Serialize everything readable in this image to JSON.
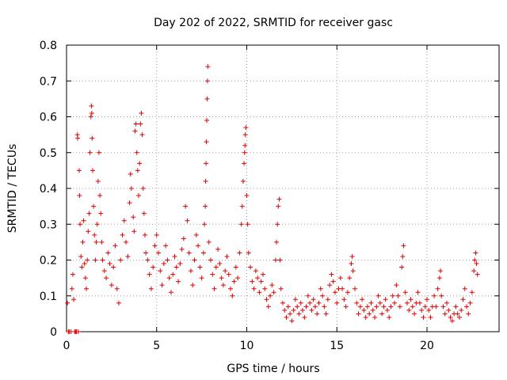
{
  "chart_data": {
    "type": "scatter",
    "title": "Day 202 of 2022, SRMTID for receiver gasc",
    "xlabel": "GPS time / hours",
    "ylabel": "SRMTID / TECUs",
    "xlim": [
      0,
      24
    ],
    "ylim": [
      0,
      0.8
    ],
    "xticks": [
      0,
      5,
      10,
      15,
      20
    ],
    "xtick_labels": [
      "0",
      "5",
      "10",
      "15",
      "20"
    ],
    "yticks": [
      0,
      0.1,
      0.2,
      0.3,
      0.4,
      0.5,
      0.6,
      0.7,
      0.8
    ],
    "ytick_labels": [
      "0",
      "0.1",
      "0.2",
      "0.3",
      "0.4",
      "0.5",
      "0.6",
      "0.7",
      "0.8"
    ],
    "grid": true,
    "marker": "+",
    "color": "#e00000",
    "series": [
      {
        "name": "SRMTID",
        "points": [
          [
            0.05,
            0.08
          ],
          [
            0.1,
            0.0
          ],
          [
            0.15,
            0.0
          ],
          [
            0.25,
            0.0
          ],
          [
            0.3,
            0.12
          ],
          [
            0.35,
            0.16
          ],
          [
            0.4,
            0.09
          ],
          [
            0.45,
            0.0
          ],
          [
            0.5,
            0.0
          ],
          [
            0.55,
            0.0
          ],
          [
            0.6,
            0.55
          ],
          [
            0.62,
            0.54
          ],
          [
            0.65,
            0.0
          ],
          [
            0.7,
            0.45
          ],
          [
            0.72,
            0.38
          ],
          [
            0.75,
            0.3
          ],
          [
            0.8,
            0.21
          ],
          [
            0.85,
            0.18
          ],
          [
            0.9,
            0.25
          ],
          [
            0.95,
            0.31
          ],
          [
            1.0,
            0.19
          ],
          [
            1.05,
            0.15
          ],
          [
            1.1,
            0.12
          ],
          [
            1.15,
            0.2
          ],
          [
            1.2,
            0.28
          ],
          [
            1.25,
            0.33
          ],
          [
            1.3,
            0.5
          ],
          [
            1.35,
            0.6
          ],
          [
            1.38,
            0.63
          ],
          [
            1.4,
            0.61
          ],
          [
            1.42,
            0.54
          ],
          [
            1.45,
            0.45
          ],
          [
            1.5,
            0.35
          ],
          [
            1.55,
            0.27
          ],
          [
            1.6,
            0.2
          ],
          [
            1.65,
            0.25
          ],
          [
            1.7,
            0.3
          ],
          [
            1.75,
            0.42
          ],
          [
            1.8,
            0.5
          ],
          [
            1.85,
            0.38
          ],
          [
            1.9,
            0.33
          ],
          [
            1.95,
            0.25
          ],
          [
            2.0,
            0.2
          ],
          [
            2.1,
            0.17
          ],
          [
            2.2,
            0.15
          ],
          [
            2.3,
            0.22
          ],
          [
            2.4,
            0.19
          ],
          [
            2.5,
            0.13
          ],
          [
            2.6,
            0.18
          ],
          [
            2.7,
            0.24
          ],
          [
            2.8,
            0.12
          ],
          [
            2.9,
            0.08
          ],
          [
            3.0,
            0.2
          ],
          [
            3.1,
            0.27
          ],
          [
            3.2,
            0.31
          ],
          [
            3.3,
            0.25
          ],
          [
            3.4,
            0.21
          ],
          [
            3.5,
            0.36
          ],
          [
            3.55,
            0.44
          ],
          [
            3.6,
            0.4
          ],
          [
            3.7,
            0.32
          ],
          [
            3.75,
            0.28
          ],
          [
            3.8,
            0.56
          ],
          [
            3.85,
            0.58
          ],
          [
            3.9,
            0.5
          ],
          [
            3.95,
            0.45
          ],
          [
            4.0,
            0.38
          ],
          [
            4.05,
            0.47
          ],
          [
            4.1,
            0.58
          ],
          [
            4.15,
            0.61
          ],
          [
            4.2,
            0.55
          ],
          [
            4.25,
            0.4
          ],
          [
            4.3,
            0.33
          ],
          [
            4.35,
            0.27
          ],
          [
            4.4,
            0.22
          ],
          [
            4.5,
            0.2
          ],
          [
            4.6,
            0.16
          ],
          [
            4.7,
            0.12
          ],
          [
            4.8,
            0.18
          ],
          [
            4.9,
            0.24
          ],
          [
            5.0,
            0.27
          ],
          [
            5.1,
            0.22
          ],
          [
            5.2,
            0.17
          ],
          [
            5.3,
            0.13
          ],
          [
            5.4,
            0.19
          ],
          [
            5.5,
            0.24
          ],
          [
            5.6,
            0.2
          ],
          [
            5.7,
            0.15
          ],
          [
            5.8,
            0.11
          ],
          [
            5.9,
            0.16
          ],
          [
            6.0,
            0.21
          ],
          [
            6.1,
            0.18
          ],
          [
            6.2,
            0.14
          ],
          [
            6.3,
            0.19
          ],
          [
            6.4,
            0.23
          ],
          [
            6.5,
            0.26
          ],
          [
            6.6,
            0.35
          ],
          [
            6.7,
            0.31
          ],
          [
            6.8,
            0.22
          ],
          [
            6.9,
            0.17
          ],
          [
            7.0,
            0.13
          ],
          [
            7.1,
            0.2
          ],
          [
            7.2,
            0.27
          ],
          [
            7.3,
            0.24
          ],
          [
            7.4,
            0.18
          ],
          [
            7.5,
            0.15
          ],
          [
            7.6,
            0.22
          ],
          [
            7.65,
            0.3
          ],
          [
            7.7,
            0.35
          ],
          [
            7.72,
            0.42
          ],
          [
            7.74,
            0.47
          ],
          [
            7.76,
            0.53
          ],
          [
            7.78,
            0.59
          ],
          [
            7.8,
            0.65
          ],
          [
            7.82,
            0.7
          ],
          [
            7.84,
            0.74
          ],
          [
            7.9,
            0.25
          ],
          [
            8.0,
            0.2
          ],
          [
            8.1,
            0.16
          ],
          [
            8.2,
            0.12
          ],
          [
            8.3,
            0.18
          ],
          [
            8.4,
            0.23
          ],
          [
            8.5,
            0.19
          ],
          [
            8.6,
            0.15
          ],
          [
            8.7,
            0.13
          ],
          [
            8.8,
            0.17
          ],
          [
            8.9,
            0.21
          ],
          [
            9.0,
            0.16
          ],
          [
            9.1,
            0.12
          ],
          [
            9.2,
            0.1
          ],
          [
            9.3,
            0.14
          ],
          [
            9.4,
            0.18
          ],
          [
            9.5,
            0.15
          ],
          [
            9.6,
            0.22
          ],
          [
            9.7,
            0.3
          ],
          [
            9.75,
            0.35
          ],
          [
            9.8,
            0.42
          ],
          [
            9.85,
            0.47
          ],
          [
            9.88,
            0.5
          ],
          [
            9.9,
            0.52
          ],
          [
            9.92,
            0.55
          ],
          [
            9.95,
            0.57
          ],
          [
            10.0,
            0.38
          ],
          [
            10.05,
            0.3
          ],
          [
            10.1,
            0.22
          ],
          [
            10.2,
            0.18
          ],
          [
            10.3,
            0.14
          ],
          [
            10.4,
            0.12
          ],
          [
            10.5,
            0.17
          ],
          [
            10.6,
            0.15
          ],
          [
            10.7,
            0.11
          ],
          [
            10.8,
            0.14
          ],
          [
            10.9,
            0.16
          ],
          [
            11.0,
            0.12
          ],
          [
            11.1,
            0.09
          ],
          [
            11.2,
            0.07
          ],
          [
            11.3,
            0.1
          ],
          [
            11.4,
            0.13
          ],
          [
            11.5,
            0.11
          ],
          [
            11.6,
            0.2
          ],
          [
            11.65,
            0.25
          ],
          [
            11.7,
            0.3
          ],
          [
            11.75,
            0.35
          ],
          [
            11.8,
            0.37
          ],
          [
            11.85,
            0.2
          ],
          [
            11.9,
            0.12
          ],
          [
            12.0,
            0.08
          ],
          [
            12.1,
            0.06
          ],
          [
            12.2,
            0.04
          ],
          [
            12.3,
            0.07
          ],
          [
            12.4,
            0.05
          ],
          [
            12.5,
            0.03
          ],
          [
            12.6,
            0.06
          ],
          [
            12.7,
            0.09
          ],
          [
            12.8,
            0.07
          ],
          [
            12.9,
            0.05
          ],
          [
            13.0,
            0.08
          ],
          [
            13.1,
            0.06
          ],
          [
            13.2,
            0.04
          ],
          [
            13.3,
            0.07
          ],
          [
            13.4,
            0.1
          ],
          [
            13.5,
            0.08
          ],
          [
            13.6,
            0.06
          ],
          [
            13.7,
            0.09
          ],
          [
            13.8,
            0.07
          ],
          [
            13.9,
            0.05
          ],
          [
            14.0,
            0.08
          ],
          [
            14.1,
            0.12
          ],
          [
            14.2,
            0.1
          ],
          [
            14.3,
            0.07
          ],
          [
            14.4,
            0.05
          ],
          [
            14.5,
            0.09
          ],
          [
            14.6,
            0.13
          ],
          [
            14.7,
            0.16
          ],
          [
            14.8,
            0.14
          ],
          [
            14.9,
            0.11
          ],
          [
            15.0,
            0.08
          ],
          [
            15.1,
            0.12
          ],
          [
            15.2,
            0.15
          ],
          [
            15.3,
            0.12
          ],
          [
            15.4,
            0.09
          ],
          [
            15.5,
            0.07
          ],
          [
            15.6,
            0.11
          ],
          [
            15.7,
            0.15
          ],
          [
            15.8,
            0.19
          ],
          [
            15.85,
            0.21
          ],
          [
            15.9,
            0.17
          ],
          [
            16.0,
            0.12
          ],
          [
            16.1,
            0.08
          ],
          [
            16.2,
            0.05
          ],
          [
            16.3,
            0.07
          ],
          [
            16.4,
            0.09
          ],
          [
            16.5,
            0.06
          ],
          [
            16.6,
            0.04
          ],
          [
            16.7,
            0.07
          ],
          [
            16.8,
            0.05
          ],
          [
            16.9,
            0.08
          ],
          [
            17.0,
            0.06
          ],
          [
            17.1,
            0.04
          ],
          [
            17.2,
            0.07
          ],
          [
            17.3,
            0.1
          ],
          [
            17.4,
            0.08
          ],
          [
            17.5,
            0.05
          ],
          [
            17.6,
            0.07
          ],
          [
            17.7,
            0.09
          ],
          [
            17.8,
            0.06
          ],
          [
            17.9,
            0.04
          ],
          [
            18.0,
            0.07
          ],
          [
            18.1,
            0.1
          ],
          [
            18.2,
            0.08
          ],
          [
            18.3,
            0.13
          ],
          [
            18.4,
            0.1
          ],
          [
            18.5,
            0.07
          ],
          [
            18.6,
            0.18
          ],
          [
            18.65,
            0.21
          ],
          [
            18.7,
            0.24
          ],
          [
            18.8,
            0.11
          ],
          [
            18.9,
            0.08
          ],
          [
            19.0,
            0.06
          ],
          [
            19.1,
            0.09
          ],
          [
            19.2,
            0.07
          ],
          [
            19.3,
            0.05
          ],
          [
            19.4,
            0.08
          ],
          [
            19.5,
            0.11
          ],
          [
            19.6,
            0.08
          ],
          [
            19.7,
            0.06
          ],
          [
            19.8,
            0.04
          ],
          [
            19.9,
            0.07
          ],
          [
            20.0,
            0.09
          ],
          [
            20.1,
            0.06
          ],
          [
            20.2,
            0.04
          ],
          [
            20.3,
            0.07
          ],
          [
            20.4,
            0.1
          ],
          [
            20.5,
            0.07
          ],
          [
            20.6,
            0.12
          ],
          [
            20.7,
            0.15
          ],
          [
            20.75,
            0.17
          ],
          [
            20.8,
            0.1
          ],
          [
            20.9,
            0.07
          ],
          [
            21.0,
            0.05
          ],
          [
            21.1,
            0.08
          ],
          [
            21.2,
            0.06
          ],
          [
            21.3,
            0.04
          ],
          [
            21.4,
            0.03
          ],
          [
            21.5,
            0.05
          ],
          [
            21.6,
            0.07
          ],
          [
            21.7,
            0.05
          ],
          [
            21.8,
            0.04
          ],
          [
            21.9,
            0.06
          ],
          [
            22.0,
            0.09
          ],
          [
            22.1,
            0.12
          ],
          [
            22.2,
            0.07
          ],
          [
            22.3,
            0.05
          ],
          [
            22.4,
            0.08
          ],
          [
            22.5,
            0.11
          ],
          [
            22.6,
            0.17
          ],
          [
            22.65,
            0.2
          ],
          [
            22.7,
            0.22
          ],
          [
            22.75,
            0.19
          ],
          [
            22.8,
            0.16
          ]
        ]
      }
    ]
  }
}
